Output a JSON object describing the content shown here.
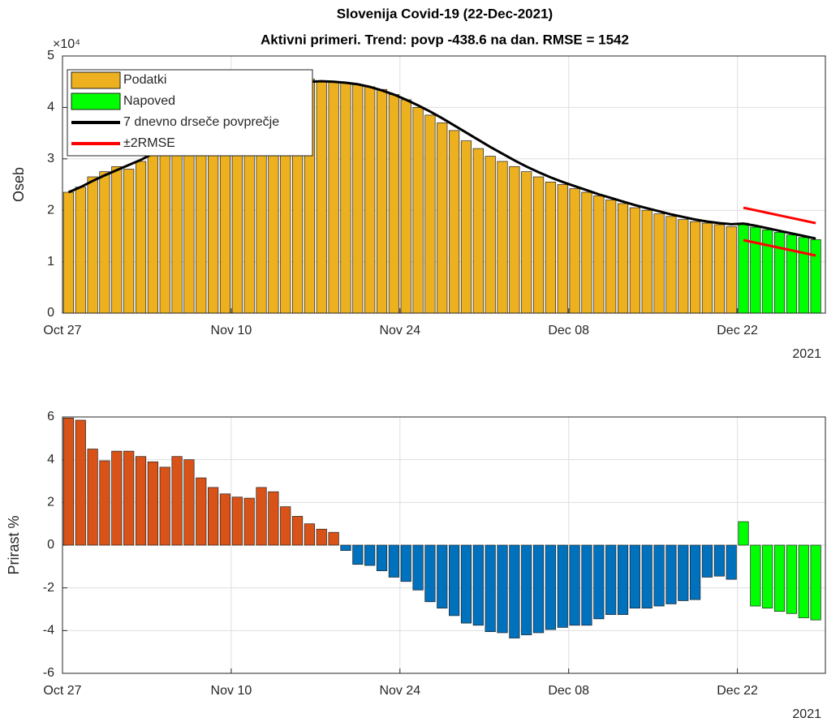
{
  "chart_data": [
    {
      "type": "bar",
      "title": "Slovenija Covid-19 (22-Dec-2021)",
      "subtitle": "Aktivni primeri. Trend: povp -438.6 na dan. RMSE = 1542",
      "y_label": "Oseb",
      "y_exponent": "×10⁴",
      "x_year_label": "2021",
      "categories": [
        "Oct 27",
        null,
        null,
        null,
        null,
        null,
        null,
        null,
        null,
        null,
        null,
        null,
        null,
        null,
        "Nov 10",
        null,
        null,
        null,
        null,
        null,
        null,
        null,
        null,
        null,
        null,
        null,
        null,
        null,
        "Nov 24",
        null,
        null,
        null,
        null,
        null,
        null,
        null,
        null,
        null,
        null,
        null,
        null,
        null,
        "Dec 08",
        null,
        null,
        null,
        null,
        null,
        null,
        null,
        null,
        null,
        null,
        null,
        null,
        null,
        "Dec 22",
        null,
        null,
        null,
        null,
        null,
        null
      ],
      "ylim": [
        0,
        50000
      ],
      "yticks": [
        {
          "value": 0,
          "label": "0"
        },
        {
          "value": 10000,
          "label": "1"
        },
        {
          "value": 20000,
          "label": "2"
        },
        {
          "value": 30000,
          "label": "3"
        },
        {
          "value": 40000,
          "label": "4"
        },
        {
          "value": 50000,
          "label": "5"
        }
      ],
      "grid": true,
      "legend": "upper-left",
      "series": [
        {
          "name": "Podatki",
          "style": "bar",
          "color": "#edb120",
          "values": [
            23500,
            24500,
            26500,
            27500,
            28500,
            28000,
            29500,
            31000,
            32500,
            34000,
            35500,
            37000,
            38500,
            40000,
            41000,
            42000,
            43000,
            44000,
            45000,
            45500,
            45500,
            45000,
            45000,
            44800,
            44500,
            44000,
            43500,
            42500,
            41500,
            40000,
            38500,
            37000,
            35500,
            33500,
            32000,
            30500,
            29500,
            28500,
            27500,
            26500,
            25500,
            25000,
            24200,
            23500,
            22800,
            22000,
            21300,
            20500,
            20000,
            19300,
            18800,
            18200,
            17800,
            17500,
            17200,
            16800,
            null,
            null,
            null,
            null,
            null,
            null,
            null
          ]
        },
        {
          "name": "Napoved",
          "style": "bar",
          "color": "#00ff00",
          "values": [
            null,
            null,
            null,
            null,
            null,
            null,
            null,
            null,
            null,
            null,
            null,
            null,
            null,
            null,
            null,
            null,
            null,
            null,
            null,
            null,
            null,
            null,
            null,
            null,
            null,
            null,
            null,
            null,
            null,
            null,
            null,
            null,
            null,
            null,
            null,
            null,
            null,
            null,
            null,
            null,
            null,
            null,
            null,
            null,
            null,
            null,
            null,
            null,
            null,
            null,
            null,
            null,
            null,
            null,
            null,
            null,
            17500,
            16700,
            16200,
            15700,
            15200,
            14700,
            14300
          ]
        },
        {
          "name": "7 dnevno drseče povprečje",
          "style": "line",
          "color": "#000000",
          "values": [
            23500,
            24500,
            25700,
            26800,
            27800,
            28800,
            29800,
            31000,
            32300,
            33700,
            35200,
            36600,
            38000,
            39300,
            40500,
            41600,
            42600,
            43500,
            44200,
            44700,
            45000,
            45100,
            45000,
            44800,
            44500,
            44000,
            43300,
            42500,
            41500,
            40400,
            39200,
            37900,
            36500,
            35100,
            33700,
            32300,
            31000,
            29700,
            28500,
            27400,
            26400,
            25500,
            24700,
            23900,
            23100,
            22400,
            21700,
            21000,
            20400,
            19800,
            19200,
            18700,
            18200,
            17800,
            17500,
            17300,
            17400,
            17000,
            16500,
            16000,
            15500,
            15000,
            14500
          ]
        },
        {
          "name": "±2RMSE",
          "style": "band",
          "color": "#ff0000",
          "upper": [
            null,
            null,
            null,
            null,
            null,
            null,
            null,
            null,
            null,
            null,
            null,
            null,
            null,
            null,
            null,
            null,
            null,
            null,
            null,
            null,
            null,
            null,
            null,
            null,
            null,
            null,
            null,
            null,
            null,
            null,
            null,
            null,
            null,
            null,
            null,
            null,
            null,
            null,
            null,
            null,
            null,
            null,
            null,
            null,
            null,
            null,
            null,
            null,
            null,
            null,
            null,
            null,
            null,
            null,
            null,
            null,
            20500,
            20000,
            19500,
            19000,
            18500,
            18000,
            17500
          ],
          "lower": [
            null,
            null,
            null,
            null,
            null,
            null,
            null,
            null,
            null,
            null,
            null,
            null,
            null,
            null,
            null,
            null,
            null,
            null,
            null,
            null,
            null,
            null,
            null,
            null,
            null,
            null,
            null,
            null,
            null,
            null,
            null,
            null,
            null,
            null,
            null,
            null,
            null,
            null,
            null,
            null,
            null,
            null,
            null,
            null,
            null,
            null,
            null,
            null,
            null,
            null,
            null,
            null,
            null,
            null,
            null,
            null,
            14200,
            13700,
            13200,
            12700,
            12200,
            11700,
            11200
          ]
        }
      ]
    },
    {
      "type": "bar",
      "y_label": "Prirast %",
      "x_year_label": "2021",
      "categories": [
        "Oct 27",
        null,
        null,
        null,
        null,
        null,
        null,
        null,
        null,
        null,
        null,
        null,
        null,
        null,
        "Nov 10",
        null,
        null,
        null,
        null,
        null,
        null,
        null,
        null,
        null,
        null,
        null,
        null,
        null,
        "Nov 24",
        null,
        null,
        null,
        null,
        null,
        null,
        null,
        null,
        null,
        null,
        null,
        null,
        null,
        "Dec 08",
        null,
        null,
        null,
        null,
        null,
        null,
        null,
        null,
        null,
        null,
        null,
        null,
        null,
        "Dec 22",
        null,
        null,
        null,
        null,
        null,
        null
      ],
      "ylim": [
        -6,
        6
      ],
      "yticks": [
        -6,
        -4,
        -2,
        0,
        2,
        4,
        6
      ],
      "grid": true,
      "series": [
        {
          "style": "bar",
          "color_positive": "#d95319",
          "color_negative": "#0072bd",
          "values": [
            5.95,
            5.85,
            4.5,
            3.95,
            4.4,
            4.4,
            4.15,
            3.9,
            3.65,
            4.15,
            4.0,
            3.15,
            2.7,
            2.4,
            2.25,
            2.2,
            2.7,
            2.5,
            1.8,
            1.35,
            1.0,
            0.75,
            0.6,
            -0.25,
            -0.9,
            -0.95,
            -1.2,
            -1.5,
            -1.7,
            -2.1,
            -2.65,
            -2.95,
            -3.3,
            -3.65,
            -3.75,
            -4.05,
            -4.1,
            -4.35,
            -4.2,
            -4.1,
            -3.95,
            -3.85,
            -3.75,
            -3.75,
            -3.45,
            -3.25,
            -3.25,
            -2.95,
            -2.95,
            -2.85,
            -2.75,
            -2.6,
            -2.55,
            -1.5,
            -1.45,
            -1.6,
            null,
            null,
            null,
            null,
            null,
            null,
            null
          ]
        },
        {
          "style": "bar",
          "color": "#00ff00",
          "values": [
            null,
            null,
            null,
            null,
            null,
            null,
            null,
            null,
            null,
            null,
            null,
            null,
            null,
            null,
            null,
            null,
            null,
            null,
            null,
            null,
            null,
            null,
            null,
            null,
            null,
            null,
            null,
            null,
            null,
            null,
            null,
            null,
            null,
            null,
            null,
            null,
            null,
            null,
            null,
            null,
            null,
            null,
            null,
            null,
            null,
            null,
            null,
            null,
            null,
            null,
            null,
            null,
            null,
            null,
            null,
            null,
            1.1,
            -2.85,
            -2.95,
            -3.1,
            -3.2,
            -3.4,
            -3.5
          ]
        }
      ]
    }
  ]
}
